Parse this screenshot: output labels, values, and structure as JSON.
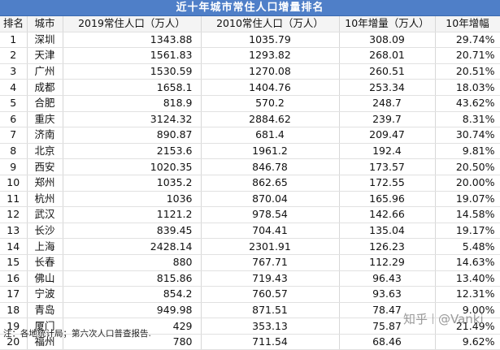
{
  "title": "近十年城市常住人口增量排名",
  "headers": [
    "排名",
    "城市",
    "2019常住人口（万人）",
    "2010常住人口（万人）",
    "10年增量（万人）",
    "10年增幅"
  ],
  "rows": [
    [
      "1",
      "深圳",
      "1343.88",
      "1035.79",
      "308.09",
      "29.74%"
    ],
    [
      "2",
      "天津",
      "1561.83",
      "1293.82",
      "268.01",
      "20.71%"
    ],
    [
      "3",
      "广州",
      "1530.59",
      "1270.08",
      "260.51",
      "20.51%"
    ],
    [
      "4",
      "成都",
      "1658.1",
      "1404.76",
      "253.34",
      "18.03%"
    ],
    [
      "5",
      "合肥",
      "818.9",
      "570.2",
      "248.7",
      "43.62%"
    ],
    [
      "6",
      "重庆",
      "3124.32",
      "2884.62",
      "239.7",
      "8.31%"
    ],
    [
      "7",
      "济南",
      "890.87",
      "681.4",
      "209.47",
      "30.74%"
    ],
    [
      "8",
      "北京",
      "2153.6",
      "1961.2",
      "192.4",
      "9.81%"
    ],
    [
      "9",
      "西安",
      "1020.35",
      "846.78",
      "173.57",
      "20.50%"
    ],
    [
      "10",
      "郑州",
      "1035.2",
      "862.65",
      "172.55",
      "20.00%"
    ],
    [
      "11",
      "杭州",
      "1036",
      "870.04",
      "165.96",
      "19.07%"
    ],
    [
      "12",
      "武汉",
      "1121.2",
      "978.54",
      "142.66",
      "14.58%"
    ],
    [
      "13",
      "长沙",
      "839.45",
      "704.41",
      "135.04",
      "19.17%"
    ],
    [
      "14",
      "上海",
      "2428.14",
      "2301.91",
      "126.23",
      "5.48%"
    ],
    [
      "15",
      "长春",
      "880",
      "767.71",
      "112.29",
      "14.63%"
    ],
    [
      "16",
      "佛山",
      "815.86",
      "719.43",
      "96.43",
      "13.40%"
    ],
    [
      "17",
      "宁波",
      "854.2",
      "760.57",
      "93.63",
      "12.31%"
    ],
    [
      "18",
      "青岛",
      "949.98",
      "871.51",
      "78.47",
      "9.00%"
    ],
    [
      "19",
      "厦门",
      "429",
      "353.13",
      "75.87",
      "21.49%"
    ],
    [
      "20",
      "福州",
      "780",
      "711.54",
      "68.46",
      "9.62%"
    ]
  ],
  "note": "注：各地统计局；第六次人口普查报告.",
  "watermark": {
    "brand": "知乎",
    "user": "@Vanki"
  },
  "colors": {
    "title_bg": "#4f7fc8",
    "title_text": "#ffffff"
  }
}
